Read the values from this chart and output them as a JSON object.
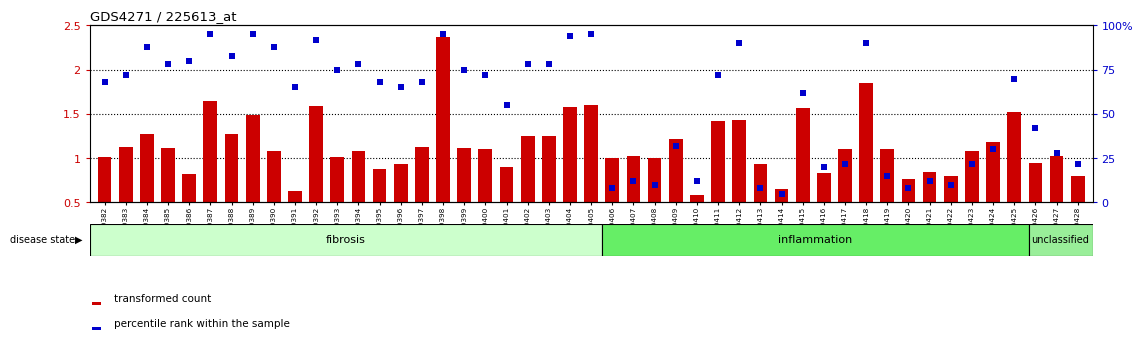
{
  "title": "GDS4271 / 225613_at",
  "samples": [
    "GSM380382",
    "GSM380383",
    "GSM380384",
    "GSM380385",
    "GSM380386",
    "GSM380387",
    "GSM380388",
    "GSM380389",
    "GSM380390",
    "GSM380391",
    "GSM380392",
    "GSM380393",
    "GSM380394",
    "GSM380395",
    "GSM380396",
    "GSM380397",
    "GSM380398",
    "GSM380399",
    "GSM380400",
    "GSM380401",
    "GSM380402",
    "GSM380403",
    "GSM380404",
    "GSM380405",
    "GSM380406",
    "GSM380407",
    "GSM380408",
    "GSM380409",
    "GSM380410",
    "GSM380411",
    "GSM380412",
    "GSM380413",
    "GSM380414",
    "GSM380415",
    "GSM380416",
    "GSM380417",
    "GSM380418",
    "GSM380419",
    "GSM380420",
    "GSM380421",
    "GSM380422",
    "GSM380423",
    "GSM380424",
    "GSM380425",
    "GSM380426",
    "GSM380427",
    "GSM380428"
  ],
  "bar_values": [
    1.01,
    1.13,
    1.27,
    1.11,
    0.82,
    1.65,
    1.27,
    1.49,
    1.08,
    0.63,
    1.59,
    1.01,
    1.08,
    0.88,
    0.93,
    1.13,
    2.37,
    1.12,
    1.1,
    0.9,
    1.25,
    1.25,
    1.58,
    1.6,
    1.0,
    1.02,
    1.0,
    1.22,
    0.58,
    1.42,
    1.43,
    0.93,
    0.65,
    1.57,
    0.83,
    1.1,
    1.85,
    1.1,
    0.77,
    0.85,
    0.8,
    1.08,
    1.18,
    1.52,
    0.95,
    1.02,
    0.8
  ],
  "percentile_values": [
    68,
    72,
    88,
    78,
    80,
    95,
    83,
    95,
    88,
    65,
    92,
    75,
    78,
    68,
    65,
    68,
    95,
    75,
    72,
    55,
    78,
    78,
    94,
    95,
    8,
    12,
    10,
    32,
    12,
    72,
    90,
    8,
    5,
    62,
    20,
    22,
    90,
    15,
    8,
    12,
    10,
    22,
    30,
    70,
    42,
    28,
    22
  ],
  "disease_states": {
    "fibrosis": [
      0,
      23
    ],
    "inflammation": [
      24,
      43
    ],
    "unclassified": [
      44,
      46
    ]
  },
  "fibrosis_color": "#ccffcc",
  "inflammation_color": "#66ee66",
  "unclassified_color": "#99ee99",
  "bar_color": "#cc0000",
  "dot_color": "#0000cc",
  "ylim_left": [
    0.5,
    2.5
  ],
  "ylim_right": [
    0,
    100
  ],
  "yticks_left": [
    0.5,
    1.0,
    1.5,
    2.0,
    2.5
  ],
  "yticks_right": [
    0,
    25,
    50,
    75,
    100
  ],
  "ytick_labels_right": [
    "0",
    "25",
    "50",
    "75",
    "100%"
  ],
  "hlines": [
    1.0,
    1.5,
    2.0
  ],
  "bg_color": "#ffffff",
  "left_axis_color": "#cc0000",
  "right_axis_color": "#0000cc"
}
